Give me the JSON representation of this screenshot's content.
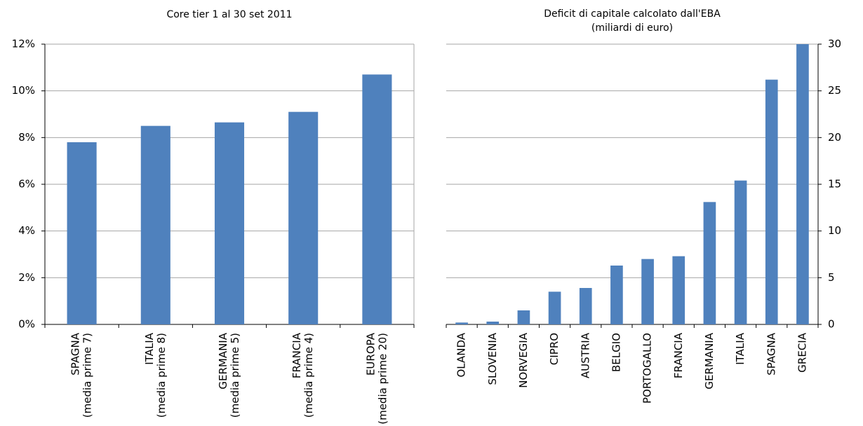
{
  "chart_data": [
    {
      "type": "bar",
      "title": "Core tier 1 al 30 set 2011",
      "categories": [
        [
          "SPAGNA",
          "(media prime 7)"
        ],
        [
          "ITALIA",
          "(media prime 8)"
        ],
        [
          "GERMANIA",
          "(media prime 5)"
        ],
        [
          "FRANCIA",
          "(media prime 4)"
        ],
        [
          "EUROPA",
          "(media prime 20)"
        ]
      ],
      "values": [
        7.8,
        8.5,
        8.65,
        9.1,
        10.7
      ],
      "color": "#4f81bd",
      "ylim": [
        0,
        12
      ],
      "yticks": [
        {
          "value": 0,
          "label": "0%"
        },
        {
          "value": 2,
          "label": "2%"
        },
        {
          "value": 4,
          "label": "4%"
        },
        {
          "value": 6,
          "label": "6%"
        },
        {
          "value": 8,
          "label": "8%"
        },
        {
          "value": 10,
          "label": "10%"
        },
        {
          "value": 12,
          "label": "12%"
        }
      ],
      "y_axis_side": "left",
      "grid": true
    },
    {
      "type": "bar",
      "title": "Deficit di capitale calcolato dall'EBA",
      "subtitle": "(miliardi di euro)",
      "categories": [
        [
          "OLANDA"
        ],
        [
          "SLOVENIA"
        ],
        [
          "NORVEGIA"
        ],
        [
          "CIPRO"
        ],
        [
          "AUSTRIA"
        ],
        [
          "BELGIO"
        ],
        [
          "PORTOGALLO"
        ],
        [
          "FRANCIA"
        ],
        [
          "GERMANIA"
        ],
        [
          "ITALIA"
        ],
        [
          "SPAGNA"
        ],
        [
          "GRECIA"
        ]
      ],
      "values": [
        0.2,
        0.3,
        1.5,
        3.5,
        3.9,
        6.3,
        7.0,
        7.3,
        13.1,
        15.4,
        26.2,
        30.0
      ],
      "color": "#4f81bd",
      "ylim": [
        0,
        30
      ],
      "yticks": [
        0,
        5,
        10,
        15,
        20,
        25,
        30
      ],
      "y_axis_side": "right",
      "grid": true
    }
  ]
}
